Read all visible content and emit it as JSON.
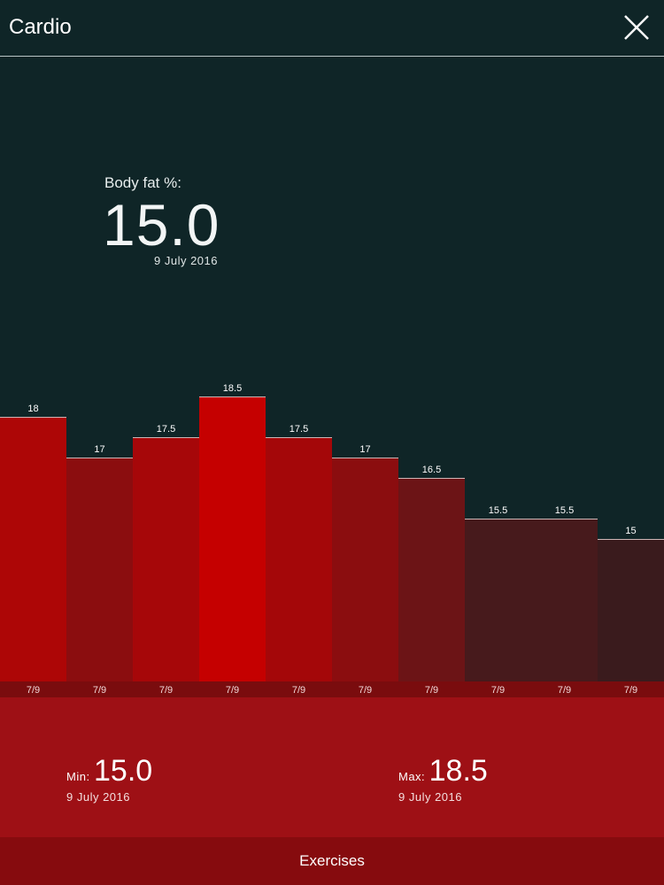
{
  "header": {
    "title": "Cardio",
    "close_icon": "close-icon"
  },
  "readout": {
    "label": "Body fat %:",
    "value": "15.0",
    "date": "9 July 2016"
  },
  "chart_data": {
    "type": "bar",
    "categories": [
      "7/9",
      "7/9",
      "7/9",
      "7/9",
      "7/9",
      "7/9",
      "7/9",
      "7/9",
      "7/9",
      "7/9"
    ],
    "values": [
      18,
      17,
      17.5,
      18.5,
      17.5,
      17,
      16.5,
      15.5,
      15.5,
      15
    ],
    "value_labels": [
      "18",
      "17",
      "17.5",
      "18.5",
      "17.5",
      "17",
      "16.5",
      "15.5",
      "15.5",
      "15"
    ],
    "title": "",
    "xlabel": "",
    "ylabel": "",
    "ylim": [
      11.5,
      18.5
    ],
    "grid": false,
    "highlight_index": 3,
    "colors": [
      "#ad0606",
      "#8b0d0f",
      "#a60709",
      "#c50000",
      "#a40709",
      "#8b0d0f",
      "#6c1416",
      "#471a1c",
      "#471a1c",
      "#3a1b1d"
    ],
    "axis_band_color": "#7a0c0e",
    "separator_color": "#cdb6b6"
  },
  "summary": {
    "min": {
      "label": "Min:",
      "value": "15.0",
      "date": "9 July 2016"
    },
    "max": {
      "label": "Max:",
      "value": "18.5",
      "date": "9 July 2016"
    }
  },
  "footer": {
    "button_label": "Exercises"
  }
}
